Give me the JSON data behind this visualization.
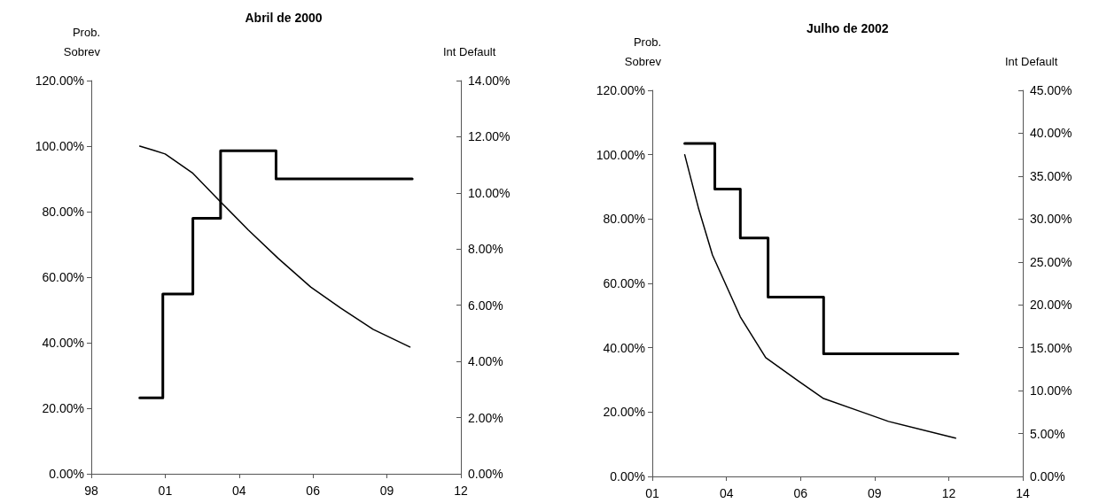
{
  "chart_data": [
    {
      "type": "line",
      "title": "Abril de 2000",
      "ylabel": "Prob.\nSobrev",
      "y2label": "Int Default",
      "xlim": [
        "1998-10",
        "2012-02"
      ],
      "xticks": [
        {
          "value": "1998-10",
          "label": "98"
        },
        {
          "value": "2001-06",
          "label": "01"
        },
        {
          "value": "2004-02",
          "label": "04"
        },
        {
          "value": "2006-10",
          "label": "06"
        },
        {
          "value": "2009-06",
          "label": "09"
        },
        {
          "value": "2012-02",
          "label": "12"
        }
      ],
      "ylim": [
        0,
        120
      ],
      "yticks": [
        {
          "value": 0,
          "label": "0.00%"
        },
        {
          "value": 20,
          "label": "20.00%"
        },
        {
          "value": 40,
          "label": "40.00%"
        },
        {
          "value": 60,
          "label": "60.00%"
        },
        {
          "value": 80,
          "label": "80.00%"
        },
        {
          "value": 100,
          "label": "100.00%"
        },
        {
          "value": 120,
          "label": "120.00%"
        }
      ],
      "y2lim": [
        0,
        14
      ],
      "y2ticks": [
        {
          "value": 0,
          "label": "0.00%"
        },
        {
          "value": 2,
          "label": "2.00%"
        },
        {
          "value": 4,
          "label": "4.00%"
        },
        {
          "value": 6,
          "label": "6.00%"
        },
        {
          "value": 8,
          "label": "8.00%"
        },
        {
          "value": 10,
          "label": "10.00%"
        },
        {
          "value": 12,
          "label": "12.00%"
        },
        {
          "value": 14,
          "label": "14.00%"
        }
      ],
      "grid": false,
      "marker": "none",
      "series": [
        {
          "type": "line",
          "color": "#000000",
          "x": [
            "2000-07",
            "2001-01",
            "2001-06",
            "2002-06",
            "2003-06",
            "2004-06",
            "2005-07",
            "2006-09",
            "2007-10",
            "2008-12",
            "2010-04"
          ],
          "values": [
            100,
            98.7,
            97.6,
            91.7,
            83,
            74.4,
            65.7,
            57,
            50.6,
            44.1,
            38.7
          ]
        },
        {
          "type": "step",
          "axis": "y2",
          "color": "#000000",
          "x": [
            "2000-07",
            "2001-05",
            "2002-06",
            "2003-06",
            "2005-06",
            "2010-05"
          ],
          "values": [
            2.7,
            6.4,
            9.1,
            11.5,
            10.5,
            10.5
          ]
        }
      ]
    },
    {
      "type": "line",
      "title": "Julho de 2002",
      "ylabel": "Prob.\nSobrev",
      "y2label": "Int Default",
      "xlim": [
        "2001-06",
        "2014-10"
      ],
      "xticks": [
        {
          "value": "2001-06",
          "label": "01"
        },
        {
          "value": "2004-02",
          "label": "04"
        },
        {
          "value": "2006-10",
          "label": "06"
        },
        {
          "value": "2009-06",
          "label": "09"
        },
        {
          "value": "2012-02",
          "label": "12"
        },
        {
          "value": "2014-10",
          "label": "14"
        }
      ],
      "ylim": [
        0,
        120
      ],
      "yticks": [
        {
          "value": 0,
          "label": "0.00%"
        },
        {
          "value": 20,
          "label": "20.00%"
        },
        {
          "value": 40,
          "label": "40.00%"
        },
        {
          "value": 60,
          "label": "60.00%"
        },
        {
          "value": 80,
          "label": "80.00%"
        },
        {
          "value": 100,
          "label": "100.00%"
        },
        {
          "value": 120,
          "label": "120.00%"
        }
      ],
      "y2lim": [
        0,
        45
      ],
      "y2ticks": [
        {
          "value": 0,
          "label": "0.00%"
        },
        {
          "value": 5,
          "label": "5.00%"
        },
        {
          "value": 10,
          "label": "10.00%"
        },
        {
          "value": 15,
          "label": "15.00%"
        },
        {
          "value": 20,
          "label": "20.00%"
        },
        {
          "value": 25,
          "label": "25.00%"
        },
        {
          "value": 30,
          "label": "30.00%"
        },
        {
          "value": 35,
          "label": "35.00%"
        },
        {
          "value": 40,
          "label": "40.00%"
        },
        {
          "value": 45,
          "label": "45.00%"
        }
      ],
      "grid": false,
      "marker": "none",
      "series": [
        {
          "type": "line",
          "color": "#000000",
          "x": [
            "2002-08",
            "2003-02",
            "2003-08",
            "2004-08",
            "2005-07",
            "2006-09",
            "2007-08",
            "2008-11",
            "2009-12",
            "2012-05"
          ],
          "values": [
            100,
            83.1,
            68.8,
            49.6,
            36.9,
            29.7,
            24.2,
            20.4,
            17.1,
            11.9
          ]
        },
        {
          "type": "step",
          "axis": "y2",
          "color": "#000000",
          "x": [
            "2002-08",
            "2003-09",
            "2004-08",
            "2005-08",
            "2007-08",
            "2012-06"
          ],
          "values": [
            38.8,
            33.5,
            27.8,
            20.9,
            14.3,
            14.3
          ]
        }
      ]
    }
  ]
}
